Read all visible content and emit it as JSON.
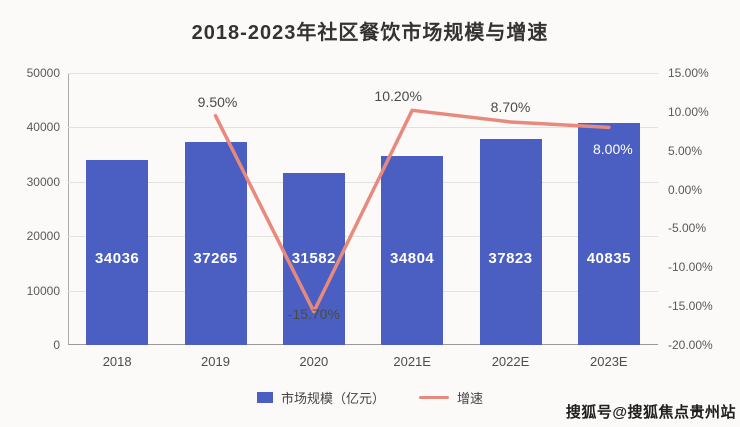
{
  "page": {
    "watermark": "搜狐号@搜狐焦点贵州站"
  },
  "chart_data": {
    "type": "bar",
    "title": "2018-2023年社区餐饮市场规模与增速",
    "categories": [
      "2018",
      "2019",
      "2020",
      "2021E",
      "2022E",
      "2023E"
    ],
    "series": [
      {
        "name": "市场规模（亿元）",
        "type": "bar",
        "axis": "left",
        "color": "#4a5fc1",
        "values": [
          34036,
          37265,
          31582,
          34804,
          37823,
          40835
        ]
      },
      {
        "name": "增速",
        "type": "line",
        "axis": "right",
        "color": "#e8897d",
        "values": [
          null,
          9.5,
          -15.7,
          10.2,
          8.7,
          8.0
        ],
        "point_labels": [
          "",
          "9.50%",
          "-15.70%",
          "10.20%",
          "8.70%",
          "8.00%"
        ],
        "point_label_colors": [
          "",
          "#4a4a4a",
          "#4a4a4a",
          "#4a4a4a",
          "#4a4a4a",
          "#ffffff"
        ],
        "point_label_offsets": [
          [
            0,
            0
          ],
          [
            2,
            -14
          ],
          [
            0,
            2
          ],
          [
            -14,
            -14
          ],
          [
            0,
            -15
          ],
          [
            4,
            22
          ]
        ]
      }
    ],
    "left_axis": {
      "min": 0,
      "max": 50000,
      "step": 10000,
      "ticks": [
        "0",
        "10000",
        "20000",
        "30000",
        "40000",
        "50000"
      ]
    },
    "right_axis": {
      "min": -20,
      "max": 15,
      "step": 5,
      "ticks": [
        "-20.00%",
        "-15.00%",
        "-10.00%",
        "-5.00%",
        "0.00%",
        "5.00%",
        "10.00%",
        "15.00%"
      ]
    },
    "legend": [
      {
        "label": "市场规模（亿元）",
        "marker": "square",
        "color": "#4a5fc1"
      },
      {
        "label": "增速",
        "marker": "line",
        "color": "#e8897d"
      }
    ],
    "grid": true,
    "legend_position": "bottom"
  }
}
